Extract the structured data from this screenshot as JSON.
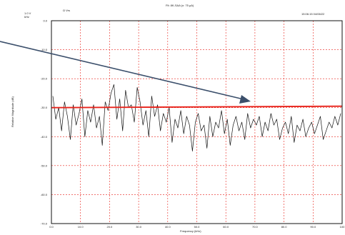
{
  "header": {
    "title": "Fit: 8K-SAA (x: 75 µA)",
    "top_left_unit": "1.0 V",
    "top_left_unit2": "kHz",
    "top_left_extra": "Ω  Vrs",
    "timestamp": "15:06:15 04/06/22"
  },
  "chart_data": {
    "type": "line",
    "title": "Fit: 8K-SAA (x: 75 µA)",
    "xlabel": "Frequency (kHz)",
    "ylabel": "Relative Magnitude (dB)",
    "xlim": [
      0,
      100
    ],
    "ylim": [
      -70,
      0
    ],
    "x_ticks": [
      0,
      10,
      20,
      30,
      40,
      50,
      60,
      70,
      80,
      90,
      100
    ],
    "x_tick_labels": [
      "0.0",
      "10.0",
      "20.0",
      "30.0",
      "40.0",
      "50.0",
      "60.0",
      "70.0",
      "80.0",
      "90.0",
      "100"
    ],
    "y_ticks": [
      0,
      -10,
      -20,
      -30,
      -40,
      -50,
      -60,
      -70
    ],
    "y_tick_labels": [
      "0.0",
      "-10.0",
      "-20.0",
      "-30.0",
      "-40.0",
      "-50.0",
      "-60.0",
      "-70.0"
    ],
    "grid": true,
    "series": [
      {
        "color": "#111111",
        "x": [
          0.5,
          1.5,
          2.5,
          3.5,
          4.5,
          5.5,
          6.5,
          7.5,
          8.5,
          9.5,
          10.5,
          11.5,
          12.5,
          13.5,
          14.5,
          15.5,
          16.5,
          17.5,
          18.5,
          19.5,
          20.5,
          21.5,
          22.5,
          23.5,
          24.5,
          25.5,
          26.5,
          27.5,
          28.5,
          29.5,
          30.5,
          31.5,
          32.5,
          33.5,
          34.5,
          35.5,
          36.5,
          37.5,
          38.5,
          39.5,
          40.5,
          41.5,
          42.5,
          43.5,
          44.5,
          45.5,
          46.5,
          47.5,
          48.5,
          49.5,
          50.5,
          51.5,
          52.5,
          53.5,
          54.5,
          55.5,
          56.5,
          57.5,
          58.5,
          59.5,
          60.5,
          61.5,
          62.5,
          63.5,
          64.5,
          65.5,
          66.5,
          67.5,
          68.5,
          69.5,
          70.5,
          71.5,
          72.5,
          73.5,
          74.5,
          75.5,
          76.5,
          77.5,
          78.5,
          79.5,
          80.5,
          81.5,
          82.5,
          83.5,
          84.5,
          85.5,
          86.5,
          87.5,
          88.5,
          89.5,
          90.5,
          91.5,
          92.5,
          93.5,
          94.5,
          95.5,
          96.5,
          97.5,
          98.5,
          99.5
        ],
        "y": [
          -26,
          -34,
          -30,
          -38,
          -28,
          -33,
          -41,
          -29,
          -36,
          -32,
          -27,
          -40,
          -31,
          -35,
          -29,
          -37,
          -33,
          -43,
          -28,
          -31,
          -25,
          -22,
          -34,
          -27,
          -38,
          -24,
          -30,
          -29,
          -35,
          -23,
          -28,
          -36,
          -31,
          -40,
          -26,
          -33,
          -29,
          -38,
          -32,
          -35,
          -30,
          -42,
          -34,
          -37,
          -31,
          -39,
          -33,
          -36,
          -45,
          -35,
          -32,
          -38,
          -36,
          -44,
          -33,
          -40,
          -35,
          -37,
          -31,
          -39,
          -34,
          -43,
          -36,
          -33,
          -38,
          -35,
          -41,
          -32,
          -37,
          -34,
          -36,
          -33,
          -40,
          -35,
          -38,
          -32,
          -36,
          -34,
          -41,
          -37,
          -35,
          -39,
          -33,
          -42,
          -36,
          -38,
          -34,
          -40,
          -37,
          -35,
          -39,
          -36,
          -33,
          -41,
          -38,
          -35,
          -37,
          -33,
          -36,
          -32
        ]
      },
      {
        "color": "#e8231b",
        "x": [
          0,
          100
        ],
        "y": [
          -30,
          -29.5
        ]
      }
    ]
  }
}
